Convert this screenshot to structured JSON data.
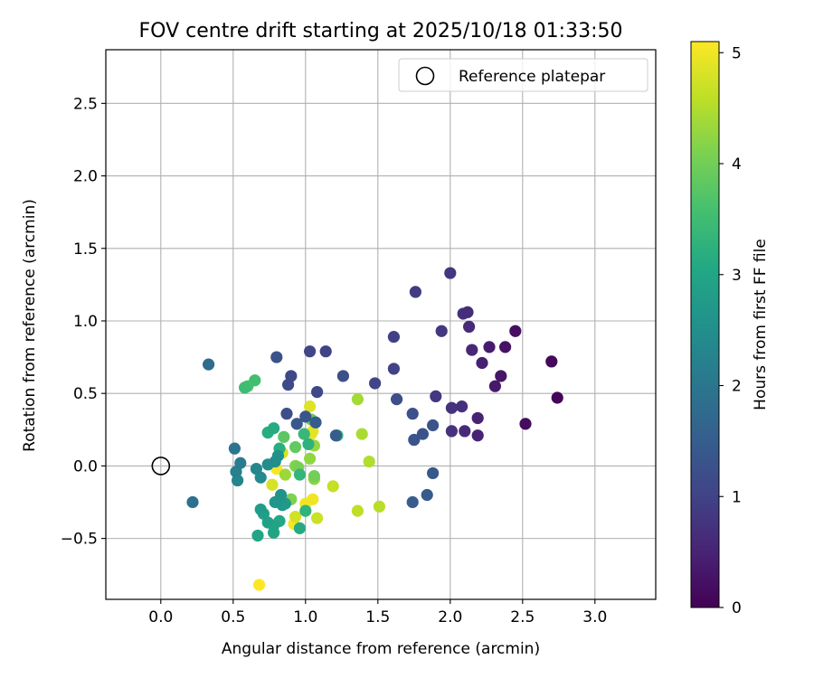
{
  "chart_data": {
    "type": "scatter",
    "title": "FOV centre drift starting at 2025/10/18 01:33:50",
    "xlabel": "Angular distance from reference (arcmin)",
    "ylabel": "Rotation from reference (arcmin)",
    "xlim": [
      -0.38,
      3.42
    ],
    "ylim": [
      -0.92,
      2.87
    ],
    "xticks": [
      0.0,
      0.5,
      1.0,
      1.5,
      2.0,
      2.5,
      3.0
    ],
    "xtick_labels": [
      "0.0",
      "0.5",
      "1.0",
      "1.5",
      "2.0",
      "2.5",
      "3.0"
    ],
    "yticks": [
      -0.5,
      0.0,
      0.5,
      1.0,
      1.5,
      2.0,
      2.5
    ],
    "ytick_labels": [
      "−0.5",
      "0.0",
      "0.5",
      "1.0",
      "1.5",
      "2.0",
      "2.5"
    ],
    "grid": true,
    "legend": {
      "position": "top-right",
      "label": "Reference platepar"
    },
    "reference": {
      "x": 0.0,
      "y": 0.0
    },
    "colorbar": {
      "label": "Hours from first FF file",
      "min": 0,
      "max": 5.1,
      "ticks": [
        0,
        1,
        2,
        3,
        4,
        5
      ],
      "tick_labels": [
        "0",
        "1",
        "2",
        "3",
        "4",
        "5"
      ],
      "colormap": "viridis"
    },
    "points": [
      {
        "x": 2.74,
        "y": 0.47,
        "h": 0.05
      },
      {
        "x": 2.7,
        "y": 0.72,
        "h": 0.1
      },
      {
        "x": 2.52,
        "y": 0.29,
        "h": 0.15
      },
      {
        "x": 2.45,
        "y": 0.93,
        "h": 0.2
      },
      {
        "x": 2.38,
        "y": 0.82,
        "h": 0.25
      },
      {
        "x": 2.35,
        "y": 0.62,
        "h": 0.3
      },
      {
        "x": 2.31,
        "y": 0.55,
        "h": 0.35
      },
      {
        "x": 2.27,
        "y": 0.82,
        "h": 0.4
      },
      {
        "x": 2.22,
        "y": 0.71,
        "h": 0.45
      },
      {
        "x": 2.19,
        "y": 0.33,
        "h": 0.5
      },
      {
        "x": 2.19,
        "y": 0.21,
        "h": 0.5
      },
      {
        "x": 2.15,
        "y": 0.8,
        "h": 0.55
      },
      {
        "x": 2.13,
        "y": 0.96,
        "h": 0.6
      },
      {
        "x": 2.1,
        "y": 0.24,
        "h": 0.6
      },
      {
        "x": 2.12,
        "y": 1.06,
        "h": 0.65
      },
      {
        "x": 2.08,
        "y": 0.41,
        "h": 0.7
      },
      {
        "x": 2.09,
        "y": 1.05,
        "h": 0.7
      },
      {
        "x": 2.01,
        "y": 0.24,
        "h": 0.75
      },
      {
        "x": 2.01,
        "y": 0.4,
        "h": 0.75
      },
      {
        "x": 2.0,
        "y": 1.33,
        "h": 0.8
      },
      {
        "x": 1.94,
        "y": 0.93,
        "h": 0.85
      },
      {
        "x": 1.9,
        "y": 0.48,
        "h": 0.85
      },
      {
        "x": 1.76,
        "y": 1.2,
        "h": 0.9
      },
      {
        "x": 1.61,
        "y": 0.89,
        "h": 0.95
      },
      {
        "x": 1.61,
        "y": 0.67,
        "h": 1.0
      },
      {
        "x": 1.48,
        "y": 0.57,
        "h": 1.05
      },
      {
        "x": 1.63,
        "y": 0.46,
        "h": 1.2
      },
      {
        "x": 1.74,
        "y": 0.36,
        "h": 1.25
      },
      {
        "x": 1.88,
        "y": 0.28,
        "h": 1.3
      },
      {
        "x": 1.81,
        "y": 0.22,
        "h": 1.3
      },
      {
        "x": 1.75,
        "y": 0.18,
        "h": 1.35
      },
      {
        "x": 1.88,
        "y": -0.05,
        "h": 1.4
      },
      {
        "x": 1.84,
        "y": -0.2,
        "h": 1.45
      },
      {
        "x": 1.74,
        "y": -0.25,
        "h": 1.5
      },
      {
        "x": 1.14,
        "y": 0.79,
        "h": 1.0
      },
      {
        "x": 1.03,
        "y": 0.79,
        "h": 1.05
      },
      {
        "x": 1.08,
        "y": 0.51,
        "h": 1.1
      },
      {
        "x": 0.9,
        "y": 0.62,
        "h": 1.1
      },
      {
        "x": 0.88,
        "y": 0.56,
        "h": 1.15
      },
      {
        "x": 1.26,
        "y": 0.62,
        "h": 1.25
      },
      {
        "x": 0.8,
        "y": 0.75,
        "h": 1.3
      },
      {
        "x": 0.87,
        "y": 0.36,
        "h": 1.2
      },
      {
        "x": 1.0,
        "y": 0.34,
        "h": 1.35
      },
      {
        "x": 0.94,
        "y": 0.29,
        "h": 1.4
      },
      {
        "x": 1.07,
        "y": 0.3,
        "h": 1.45
      },
      {
        "x": 1.21,
        "y": 0.21,
        "h": 1.5
      },
      {
        "x": 0.33,
        "y": 0.7,
        "h": 1.8
      },
      {
        "x": 0.22,
        "y": -0.25,
        "h": 1.9
      },
      {
        "x": 0.51,
        "y": 0.12,
        "h": 2.0
      },
      {
        "x": 0.55,
        "y": 0.02,
        "h": 2.1
      },
      {
        "x": 0.52,
        "y": -0.04,
        "h": 2.2
      },
      {
        "x": 0.53,
        "y": -0.1,
        "h": 2.3
      },
      {
        "x": 0.66,
        "y": -0.02,
        "h": 2.35
      },
      {
        "x": 0.69,
        "y": -0.08,
        "h": 2.4
      },
      {
        "x": 0.74,
        "y": 0.01,
        "h": 2.45
      },
      {
        "x": 0.79,
        "y": 0.03,
        "h": 2.5
      },
      {
        "x": 0.81,
        "y": 0.07,
        "h": 2.55
      },
      {
        "x": 0.83,
        "y": -0.2,
        "h": 2.6
      },
      {
        "x": 0.79,
        "y": -0.25,
        "h": 2.65
      },
      {
        "x": 0.84,
        "y": -0.27,
        "h": 2.7
      },
      {
        "x": 0.86,
        "y": -0.26,
        "h": 2.75
      },
      {
        "x": 0.69,
        "y": -0.3,
        "h": 2.8
      },
      {
        "x": 0.71,
        "y": -0.33,
        "h": 2.85
      },
      {
        "x": 0.74,
        "y": -0.39,
        "h": 2.9
      },
      {
        "x": 0.78,
        "y": -0.41,
        "h": 2.95
      },
      {
        "x": 0.78,
        "y": -0.46,
        "h": 3.0
      },
      {
        "x": 0.67,
        "y": -0.48,
        "h": 3.0
      },
      {
        "x": 0.82,
        "y": -0.38,
        "h": 3.05
      },
      {
        "x": 0.96,
        "y": -0.43,
        "h": 3.1
      },
      {
        "x": 0.78,
        "y": 0.26,
        "h": 3.1
      },
      {
        "x": 0.74,
        "y": 0.23,
        "h": 3.15
      },
      {
        "x": 0.82,
        "y": 0.12,
        "h": 3.2
      },
      {
        "x": 1.02,
        "y": 0.15,
        "h": 3.25
      },
      {
        "x": 1.0,
        "y": -0.31,
        "h": 3.3
      },
      {
        "x": 0.96,
        "y": -0.06,
        "h": 3.35
      },
      {
        "x": 0.99,
        "y": 0.22,
        "h": 3.4
      },
      {
        "x": 1.22,
        "y": 0.21,
        "h": 3.45
      },
      {
        "x": 0.58,
        "y": 0.54,
        "h": 3.5
      },
      {
        "x": 0.65,
        "y": 0.59,
        "h": 3.55
      },
      {
        "x": 0.6,
        "y": 0.55,
        "h": 3.6
      },
      {
        "x": 0.74,
        "y": 0.23,
        "h": 3.7
      },
      {
        "x": 0.85,
        "y": 0.2,
        "h": 3.8
      },
      {
        "x": 0.93,
        "y": 0.13,
        "h": 3.85
      },
      {
        "x": 1.04,
        "y": 0.32,
        "h": 3.9
      },
      {
        "x": 1.06,
        "y": -0.07,
        "h": 4.0
      },
      {
        "x": 0.95,
        "y": -0.01,
        "h": 4.05
      },
      {
        "x": 0.9,
        "y": -0.23,
        "h": 4.1
      },
      {
        "x": 0.93,
        "y": -0.0,
        "h": 4.15
      },
      {
        "x": 1.06,
        "y": -0.09,
        "h": 4.2
      },
      {
        "x": 1.03,
        "y": 0.05,
        "h": 4.25
      },
      {
        "x": 1.06,
        "y": 0.14,
        "h": 4.3
      },
      {
        "x": 0.86,
        "y": -0.06,
        "h": 4.35
      },
      {
        "x": 1.36,
        "y": 0.46,
        "h": 4.4
      },
      {
        "x": 1.39,
        "y": 0.22,
        "h": 4.45
      },
      {
        "x": 1.44,
        "y": 0.03,
        "h": 4.5
      },
      {
        "x": 1.51,
        "y": -0.28,
        "h": 4.55
      },
      {
        "x": 1.36,
        "y": -0.31,
        "h": 4.6
      },
      {
        "x": 1.19,
        "y": -0.14,
        "h": 4.65
      },
      {
        "x": 1.08,
        "y": -0.36,
        "h": 4.7
      },
      {
        "x": 0.93,
        "y": -0.35,
        "h": 4.75
      },
      {
        "x": 0.77,
        "y": -0.13,
        "h": 4.8
      },
      {
        "x": 0.84,
        "y": 0.09,
        "h": 4.8
      },
      {
        "x": 1.03,
        "y": 0.41,
        "h": 4.85
      },
      {
        "x": 1.05,
        "y": 0.24,
        "h": 4.9
      },
      {
        "x": 1.04,
        "y": 0.22,
        "h": 4.95
      },
      {
        "x": 1.0,
        "y": -0.26,
        "h": 5.0
      },
      {
        "x": 1.05,
        "y": -0.23,
        "h": 5.0
      },
      {
        "x": 0.8,
        "y": -0.02,
        "h": 5.05
      },
      {
        "x": 0.92,
        "y": -0.4,
        "h": 5.05
      },
      {
        "x": 0.68,
        "y": -0.82,
        "h": 5.1
      }
    ]
  }
}
